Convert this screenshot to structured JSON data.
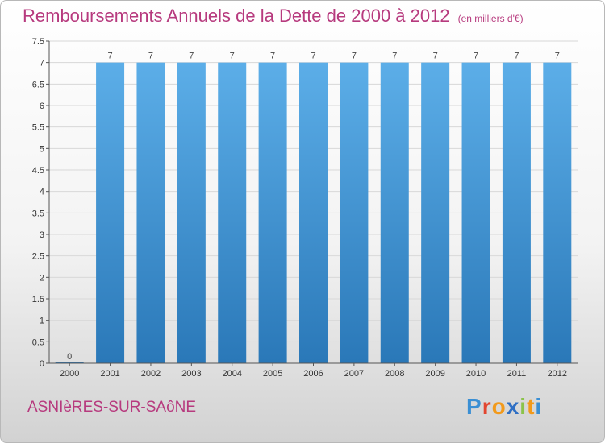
{
  "title": "Remboursements Annuels de la Dette de 2000 à 2012",
  "subtitle": "(en milliers d'€)",
  "commune": "ASNIèRES-SUR-SAôNE",
  "logo": {
    "letters": [
      {
        "char": "P",
        "color": "#3a8fd4"
      },
      {
        "char": "r",
        "color": "#e2452f"
      },
      {
        "char": "o",
        "color": "#f29a1b"
      },
      {
        "char": "x",
        "color": "#2f6fc4"
      },
      {
        "char": "i",
        "color": "#8bc34a"
      },
      {
        "char": "t",
        "color": "#f29a1b"
      },
      {
        "char": "i",
        "color": "#3a8fd4"
      }
    ]
  },
  "colors": {
    "title": "#b73a7e",
    "bar_light": "#5caee8",
    "bar_dark": "#2a78b8",
    "axis": "#555555",
    "grid": "#d8d8d8"
  },
  "chart_data": {
    "type": "bar",
    "title": "Remboursements Annuels de la Dette de 2000 à 2012",
    "subtitle": "(en milliers d'€)",
    "categories": [
      "2000",
      "2001",
      "2002",
      "2003",
      "2004",
      "2005",
      "2006",
      "2007",
      "2008",
      "2009",
      "2010",
      "2011",
      "2012"
    ],
    "values": [
      0,
      7,
      7,
      7,
      7,
      7,
      7,
      7,
      7,
      7,
      7,
      7,
      7
    ],
    "value_labels": [
      "0",
      "7",
      "7",
      "7",
      "7",
      "7",
      "7",
      "7",
      "7",
      "7",
      "7",
      "7",
      "7"
    ],
    "ylim": [
      0,
      7.5
    ],
    "yticks": [
      {
        "value": 0,
        "label": "0"
      },
      {
        "value": 0.5,
        "label": "0.5"
      },
      {
        "value": 1,
        "label": "1"
      },
      {
        "value": 1.5,
        "label": "1.5"
      },
      {
        "value": 2,
        "label": "2"
      },
      {
        "value": 2.5,
        "label": "2.5"
      },
      {
        "value": 3,
        "label": "3"
      },
      {
        "value": 3.5,
        "label": "3.5"
      },
      {
        "value": 4,
        "label": "4"
      },
      {
        "value": 4.5,
        "label": "4.5"
      },
      {
        "value": 5,
        "label": "5"
      },
      {
        "value": 5.5,
        "label": "5.5"
      },
      {
        "value": 6,
        "label": "6"
      },
      {
        "value": 6.5,
        "label": "6.5"
      },
      {
        "value": 7,
        "label": "7"
      },
      {
        "value": 7.5,
        "label": "7.5"
      }
    ],
    "grid": true,
    "legend": "none"
  }
}
